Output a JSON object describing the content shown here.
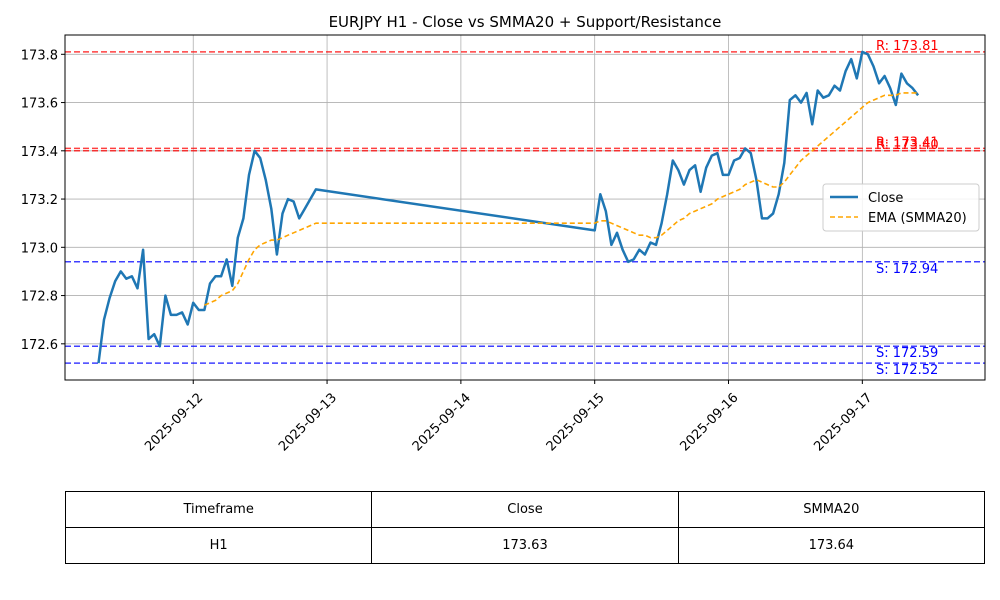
{
  "chart_data": {
    "type": "line",
    "title": "EURJPY H1 - Close vs SMMA20 + Support/Resistance",
    "xlabel": "",
    "ylabel": "",
    "ylim": [
      172.45,
      173.88
    ],
    "xlim": [
      "2025-09-11 01:00",
      "2025-09-17 22:00"
    ],
    "grid": true,
    "legend_position": "center-right",
    "x_ticks": [
      "2025-09-12",
      "2025-09-13",
      "2025-09-14",
      "2025-09-15",
      "2025-09-16",
      "2025-09-17"
    ],
    "y_ticks": [
      "172.6",
      "172.8",
      "173.0",
      "173.2",
      "173.4",
      "173.6",
      "173.8"
    ],
    "series": [
      {
        "name": "Close",
        "color": "#1f77b4",
        "style": "solid",
        "points": [
          [
            "2025-09-11 07:00",
            172.52
          ],
          [
            "2025-09-11 08:00",
            172.7
          ],
          [
            "2025-09-11 09:00",
            172.79
          ],
          [
            "2025-09-11 10:00",
            172.86
          ],
          [
            "2025-09-11 11:00",
            172.9
          ],
          [
            "2025-09-11 12:00",
            172.87
          ],
          [
            "2025-09-11 13:00",
            172.88
          ],
          [
            "2025-09-11 14:00",
            172.83
          ],
          [
            "2025-09-11 15:00",
            172.99
          ],
          [
            "2025-09-11 16:00",
            172.62
          ],
          [
            "2025-09-11 17:00",
            172.64
          ],
          [
            "2025-09-11 18:00",
            172.59
          ],
          [
            "2025-09-11 19:00",
            172.8
          ],
          [
            "2025-09-11 20:00",
            172.72
          ],
          [
            "2025-09-11 21:00",
            172.72
          ],
          [
            "2025-09-11 22:00",
            172.73
          ],
          [
            "2025-09-11 23:00",
            172.68
          ],
          [
            "2025-09-12 00:00",
            172.77
          ],
          [
            "2025-09-12 01:00",
            172.74
          ],
          [
            "2025-09-12 02:00",
            172.74
          ],
          [
            "2025-09-12 03:00",
            172.85
          ],
          [
            "2025-09-12 04:00",
            172.88
          ],
          [
            "2025-09-12 05:00",
            172.88
          ],
          [
            "2025-09-12 06:00",
            172.95
          ],
          [
            "2025-09-12 07:00",
            172.84
          ],
          [
            "2025-09-12 08:00",
            173.04
          ],
          [
            "2025-09-12 09:00",
            173.12
          ],
          [
            "2025-09-12 10:00",
            173.3
          ],
          [
            "2025-09-12 11:00",
            173.4
          ],
          [
            "2025-09-12 12:00",
            173.37
          ],
          [
            "2025-09-12 13:00",
            173.28
          ],
          [
            "2025-09-12 14:00",
            173.16
          ],
          [
            "2025-09-12 15:00",
            172.97
          ],
          [
            "2025-09-12 16:00",
            173.14
          ],
          [
            "2025-09-12 17:00",
            173.2
          ],
          [
            "2025-09-12 18:00",
            173.19
          ],
          [
            "2025-09-12 19:00",
            173.12
          ],
          [
            "2025-09-12 20:00",
            173.16
          ],
          [
            "2025-09-12 21:00",
            173.2
          ],
          [
            "2025-09-12 22:00",
            173.24
          ],
          [
            "2025-09-15 00:00",
            173.07
          ],
          [
            "2025-09-15 01:00",
            173.22
          ],
          [
            "2025-09-15 02:00",
            173.15
          ],
          [
            "2025-09-15 03:00",
            173.01
          ],
          [
            "2025-09-15 04:00",
            173.06
          ],
          [
            "2025-09-15 05:00",
            172.99
          ],
          [
            "2025-09-15 06:00",
            172.94
          ],
          [
            "2025-09-15 07:00",
            172.95
          ],
          [
            "2025-09-15 08:00",
            172.99
          ],
          [
            "2025-09-15 09:00",
            172.97
          ],
          [
            "2025-09-15 10:00",
            173.02
          ],
          [
            "2025-09-15 11:00",
            173.01
          ],
          [
            "2025-09-15 12:00",
            173.1
          ],
          [
            "2025-09-15 13:00",
            173.22
          ],
          [
            "2025-09-15 14:00",
            173.36
          ],
          [
            "2025-09-15 15:00",
            173.32
          ],
          [
            "2025-09-15 16:00",
            173.26
          ],
          [
            "2025-09-15 17:00",
            173.32
          ],
          [
            "2025-09-15 18:00",
            173.34
          ],
          [
            "2025-09-15 19:00",
            173.23
          ],
          [
            "2025-09-15 20:00",
            173.33
          ],
          [
            "2025-09-15 21:00",
            173.38
          ],
          [
            "2025-09-15 22:00",
            173.39
          ],
          [
            "2025-09-15 23:00",
            173.3
          ],
          [
            "2025-09-16 00:00",
            173.3
          ],
          [
            "2025-09-16 01:00",
            173.36
          ],
          [
            "2025-09-16 02:00",
            173.37
          ],
          [
            "2025-09-16 03:00",
            173.41
          ],
          [
            "2025-09-16 04:00",
            173.39
          ],
          [
            "2025-09-16 05:00",
            173.28
          ],
          [
            "2025-09-16 06:00",
            173.12
          ],
          [
            "2025-09-16 07:00",
            173.12
          ],
          [
            "2025-09-16 08:00",
            173.14
          ],
          [
            "2025-09-16 09:00",
            173.22
          ],
          [
            "2025-09-16 10:00",
            173.35
          ],
          [
            "2025-09-16 11:00",
            173.61
          ],
          [
            "2025-09-16 12:00",
            173.63
          ],
          [
            "2025-09-16 13:00",
            173.6
          ],
          [
            "2025-09-16 14:00",
            173.64
          ],
          [
            "2025-09-16 15:00",
            173.51
          ],
          [
            "2025-09-16 16:00",
            173.65
          ],
          [
            "2025-09-16 17:00",
            173.62
          ],
          [
            "2025-09-16 18:00",
            173.63
          ],
          [
            "2025-09-16 19:00",
            173.67
          ],
          [
            "2025-09-16 20:00",
            173.65
          ],
          [
            "2025-09-16 21:00",
            173.73
          ],
          [
            "2025-09-16 22:00",
            173.78
          ],
          [
            "2025-09-16 23:00",
            173.7
          ],
          [
            "2025-09-17 00:00",
            173.81
          ],
          [
            "2025-09-17 01:00",
            173.8
          ],
          [
            "2025-09-17 02:00",
            173.75
          ],
          [
            "2025-09-17 03:00",
            173.68
          ],
          [
            "2025-09-17 04:00",
            173.71
          ],
          [
            "2025-09-17 05:00",
            173.66
          ],
          [
            "2025-09-17 06:00",
            173.59
          ],
          [
            "2025-09-17 07:00",
            173.72
          ],
          [
            "2025-09-17 08:00",
            173.68
          ],
          [
            "2025-09-17 09:00",
            173.66
          ],
          [
            "2025-09-17 10:00",
            173.63
          ]
        ]
      },
      {
        "name": "EMA (SMMA20)",
        "color": "#ffa500",
        "style": "dashed",
        "points": [
          [
            "2025-09-12 02:00",
            172.76
          ],
          [
            "2025-09-12 03:00",
            172.77
          ],
          [
            "2025-09-12 04:00",
            172.78
          ],
          [
            "2025-09-12 05:00",
            172.8
          ],
          [
            "2025-09-12 06:00",
            172.81
          ],
          [
            "2025-09-12 07:00",
            172.82
          ],
          [
            "2025-09-12 08:00",
            172.85
          ],
          [
            "2025-09-12 09:00",
            172.9
          ],
          [
            "2025-09-12 10:00",
            172.95
          ],
          [
            "2025-09-12 11:00",
            172.99
          ],
          [
            "2025-09-12 12:00",
            173.01
          ],
          [
            "2025-09-12 13:00",
            173.02
          ],
          [
            "2025-09-12 14:00",
            173.03
          ],
          [
            "2025-09-12 15:00",
            173.03
          ],
          [
            "2025-09-12 16:00",
            173.04
          ],
          [
            "2025-09-12 17:00",
            173.05
          ],
          [
            "2025-09-12 18:00",
            173.06
          ],
          [
            "2025-09-12 19:00",
            173.07
          ],
          [
            "2025-09-12 20:00",
            173.08
          ],
          [
            "2025-09-12 21:00",
            173.09
          ],
          [
            "2025-09-12 22:00",
            173.1
          ],
          [
            "2025-09-15 00:00",
            173.1
          ],
          [
            "2025-09-15 01:00",
            173.11
          ],
          [
            "2025-09-15 02:00",
            173.11
          ],
          [
            "2025-09-15 03:00",
            173.1
          ],
          [
            "2025-09-15 04:00",
            173.09
          ],
          [
            "2025-09-15 05:00",
            173.08
          ],
          [
            "2025-09-15 06:00",
            173.07
          ],
          [
            "2025-09-15 07:00",
            173.06
          ],
          [
            "2025-09-15 08:00",
            173.05
          ],
          [
            "2025-09-15 09:00",
            173.05
          ],
          [
            "2025-09-15 10:00",
            173.04
          ],
          [
            "2025-09-15 11:00",
            173.04
          ],
          [
            "2025-09-15 12:00",
            173.05
          ],
          [
            "2025-09-15 13:00",
            173.07
          ],
          [
            "2025-09-15 14:00",
            173.09
          ],
          [
            "2025-09-15 15:00",
            173.11
          ],
          [
            "2025-09-15 16:00",
            173.12
          ],
          [
            "2025-09-15 17:00",
            173.14
          ],
          [
            "2025-09-15 18:00",
            173.15
          ],
          [
            "2025-09-15 19:00",
            173.16
          ],
          [
            "2025-09-15 20:00",
            173.17
          ],
          [
            "2025-09-15 21:00",
            173.18
          ],
          [
            "2025-09-15 22:00",
            173.2
          ],
          [
            "2025-09-15 23:00",
            173.21
          ],
          [
            "2025-09-16 00:00",
            173.22
          ],
          [
            "2025-09-16 01:00",
            173.23
          ],
          [
            "2025-09-16 02:00",
            173.24
          ],
          [
            "2025-09-16 03:00",
            173.26
          ],
          [
            "2025-09-16 04:00",
            173.27
          ],
          [
            "2025-09-16 05:00",
            173.28
          ],
          [
            "2025-09-16 06:00",
            173.27
          ],
          [
            "2025-09-16 07:00",
            173.26
          ],
          [
            "2025-09-16 08:00",
            173.25
          ],
          [
            "2025-09-16 09:00",
            173.25
          ],
          [
            "2025-09-16 10:00",
            173.27
          ],
          [
            "2025-09-16 11:00",
            173.3
          ],
          [
            "2025-09-16 12:00",
            173.33
          ],
          [
            "2025-09-16 13:00",
            173.36
          ],
          [
            "2025-09-16 14:00",
            173.38
          ],
          [
            "2025-09-16 15:00",
            173.4
          ],
          [
            "2025-09-16 16:00",
            173.42
          ],
          [
            "2025-09-16 17:00",
            173.44
          ],
          [
            "2025-09-16 18:00",
            173.46
          ],
          [
            "2025-09-16 19:00",
            173.48
          ],
          [
            "2025-09-16 20:00",
            173.5
          ],
          [
            "2025-09-16 21:00",
            173.52
          ],
          [
            "2025-09-16 22:00",
            173.54
          ],
          [
            "2025-09-16 23:00",
            173.56
          ],
          [
            "2025-09-17 00:00",
            173.58
          ],
          [
            "2025-09-17 01:00",
            173.6
          ],
          [
            "2025-09-17 02:00",
            173.61
          ],
          [
            "2025-09-17 03:00",
            173.62
          ],
          [
            "2025-09-17 04:00",
            173.63
          ],
          [
            "2025-09-17 05:00",
            173.63
          ],
          [
            "2025-09-17 06:00",
            173.63
          ],
          [
            "2025-09-17 07:00",
            173.64
          ],
          [
            "2025-09-17 08:00",
            173.64
          ],
          [
            "2025-09-17 09:00",
            173.64
          ],
          [
            "2025-09-17 10:00",
            173.64
          ]
        ]
      }
    ],
    "levels": [
      {
        "kind": "resistance",
        "value": 173.81,
        "label": "R: 173.81",
        "color": "#ff0000"
      },
      {
        "kind": "resistance",
        "value": 173.41,
        "label": "R: 173.41",
        "color": "#ff0000"
      },
      {
        "kind": "resistance",
        "value": 173.4,
        "label": "R: 173.40",
        "color": "#ff0000"
      },
      {
        "kind": "support",
        "value": 172.94,
        "label": "S: 172.94",
        "color": "#0000ff"
      },
      {
        "kind": "support",
        "value": 172.59,
        "label": "S: 172.59",
        "color": "#0000ff"
      },
      {
        "kind": "support",
        "value": 172.52,
        "label": "S: 172.52",
        "color": "#0000ff"
      }
    ]
  },
  "table": {
    "headers": [
      "Timeframe",
      "Close",
      "SMMA20"
    ],
    "row": [
      "H1",
      "173.63",
      "173.64"
    ]
  }
}
